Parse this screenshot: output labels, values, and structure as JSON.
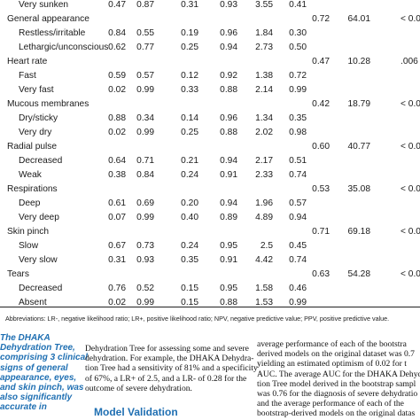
{
  "table": {
    "rows": [
      {
        "label": "Very sunken",
        "indent": true,
        "values": [
          "0.47",
          "0.87",
          "0.31",
          "0.93",
          "3.55",
          "0.41"
        ],
        "auc": "",
        "chi": "",
        "p": ""
      },
      {
        "label": "General appearance",
        "indent": false,
        "values": [
          "",
          "",
          "",
          "",
          "",
          ""
        ],
        "auc": "0.72",
        "chi": "64.01",
        "p": "< 0.0"
      },
      {
        "label": "Restless/irritable",
        "indent": true,
        "values": [
          "0.84",
          "0.55",
          "0.19",
          "0.96",
          "1.84",
          "0.30"
        ],
        "auc": "",
        "chi": "",
        "p": ""
      },
      {
        "label": "Lethargic/unconscious",
        "indent": true,
        "values": [
          "0.62",
          "0.77",
          "0.25",
          "0.94",
          "2.73",
          "0.50"
        ],
        "auc": "",
        "chi": "",
        "p": ""
      },
      {
        "label": "Heart rate",
        "indent": false,
        "values": [
          "",
          "",
          "",
          "",
          "",
          ""
        ],
        "auc": "0.47",
        "chi": "10.28",
        "p": ".006"
      },
      {
        "label": "Fast",
        "indent": true,
        "values": [
          "0.59",
          "0.57",
          "0.12",
          "0.92",
          "1.38",
          "0.72"
        ],
        "auc": "",
        "chi": "",
        "p": ""
      },
      {
        "label": "Very fast",
        "indent": true,
        "values": [
          "0.02",
          "0.99",
          "0.33",
          "0.88",
          "2.14",
          "0.99"
        ],
        "auc": "",
        "chi": "",
        "p": ""
      },
      {
        "label": "Mucous membranes",
        "indent": false,
        "values": [
          "",
          "",
          "",
          "",
          "",
          ""
        ],
        "auc": "0.42",
        "chi": "18.79",
        "p": "< 0.0"
      },
      {
        "label": "Dry/sticky",
        "indent": true,
        "values": [
          "0.88",
          "0.34",
          "0.14",
          "0.96",
          "1.34",
          "0.35"
        ],
        "auc": "",
        "chi": "",
        "p": ""
      },
      {
        "label": "Very dry",
        "indent": true,
        "values": [
          "0.02",
          "0.99",
          "0.25",
          "0.88",
          "2.02",
          "0.98"
        ],
        "auc": "",
        "chi": "",
        "p": ""
      },
      {
        "label": "Radial pulse",
        "indent": false,
        "values": [
          "",
          "",
          "",
          "",
          "",
          ""
        ],
        "auc": "0.60",
        "chi": "40.77",
        "p": "< 0.0"
      },
      {
        "label": "Decreased",
        "indent": true,
        "values": [
          "0.64",
          "0.71",
          "0.21",
          "0.94",
          "2.17",
          "0.51"
        ],
        "auc": "",
        "chi": "",
        "p": ""
      },
      {
        "label": "Weak",
        "indent": true,
        "values": [
          "0.38",
          "0.84",
          "0.24",
          "0.91",
          "2.33",
          "0.74"
        ],
        "auc": "",
        "chi": "",
        "p": ""
      },
      {
        "label": "Respirations",
        "indent": false,
        "values": [
          "",
          "",
          "",
          "",
          "",
          ""
        ],
        "auc": "0.53",
        "chi": "35.08",
        "p": "< 0.0"
      },
      {
        "label": "Deep",
        "indent": true,
        "values": [
          "0.61",
          "0.69",
          "0.20",
          "0.94",
          "1.96",
          "0.57"
        ],
        "auc": "",
        "chi": "",
        "p": ""
      },
      {
        "label": "Very deep",
        "indent": true,
        "values": [
          "0.07",
          "0.99",
          "0.40",
          "0.89",
          "4.89",
          "0.94"
        ],
        "auc": "",
        "chi": "",
        "p": ""
      },
      {
        "label": "Skin pinch",
        "indent": false,
        "values": [
          "",
          "",
          "",
          "",
          "",
          ""
        ],
        "auc": "0.71",
        "chi": "69.18",
        "p": "< 0.0"
      },
      {
        "label": "Slow",
        "indent": true,
        "values": [
          "0.67",
          "0.73",
          "0.24",
          "0.95",
          "2.5",
          "0.45"
        ],
        "auc": "",
        "chi": "",
        "p": ""
      },
      {
        "label": "Very slow",
        "indent": true,
        "values": [
          "0.31",
          "0.93",
          "0.35",
          "0.91",
          "4.42",
          "0.74"
        ],
        "auc": "",
        "chi": "",
        "p": ""
      },
      {
        "label": "Tears",
        "indent": false,
        "values": [
          "",
          "",
          "",
          "",
          "",
          ""
        ],
        "auc": "0.63",
        "chi": "54.28",
        "p": "< 0.0"
      },
      {
        "label": "Decreased",
        "indent": true,
        "values": [
          "0.76",
          "0.52",
          "0.15",
          "0.95",
          "1.58",
          "0.46"
        ],
        "auc": "",
        "chi": "",
        "p": ""
      },
      {
        "label": "Absent",
        "indent": true,
        "values": [
          "0.02",
          "0.99",
          "0.15",
          "0.88",
          "1.53",
          "0.99"
        ],
        "auc": "",
        "chi": "",
        "p": ""
      }
    ],
    "footnote": "Abbreviations: LR-, negative likelihood ratio; LR+, positive likelihood ratio; NPV, negative predictive value; PPV, positive predictive value."
  },
  "pullquote": {
    "lines": [
      "The DHAKA",
      "Dehydration Tree,",
      "comprising 3 clinical",
      "signs of general",
      "appearance, eyes,",
      "and skin pinch, was",
      "also significantly",
      "accurate in"
    ]
  },
  "body_middle": {
    "lines": [
      "Dehydration Tree for assessing some and severe",
      "dehydration. For example, the DHAKA Dehydra-",
      "tion Tree had a sensitivity of 81% and a specificity",
      "of 67%, a LR+ of 2.5, and a LR- of 0.28 for the",
      "outcome of severe dehydration."
    ],
    "heading": "Model Validation"
  },
  "body_right": {
    "lines": [
      "average performance of each of the bootstra",
      "derived models on the original dataset was 0.7",
      "yielding an estimated optimism of 0.02 for t",
      "AUC. The average AUC for the DHAKA Dehydra",
      "tion Tree model derived in the bootstrap sampl",
      "was 0.76 for the diagnosis of severe dehydratio",
      "and the average performance of each of the",
      "bootstrap-derived models on the original datas"
    ]
  }
}
